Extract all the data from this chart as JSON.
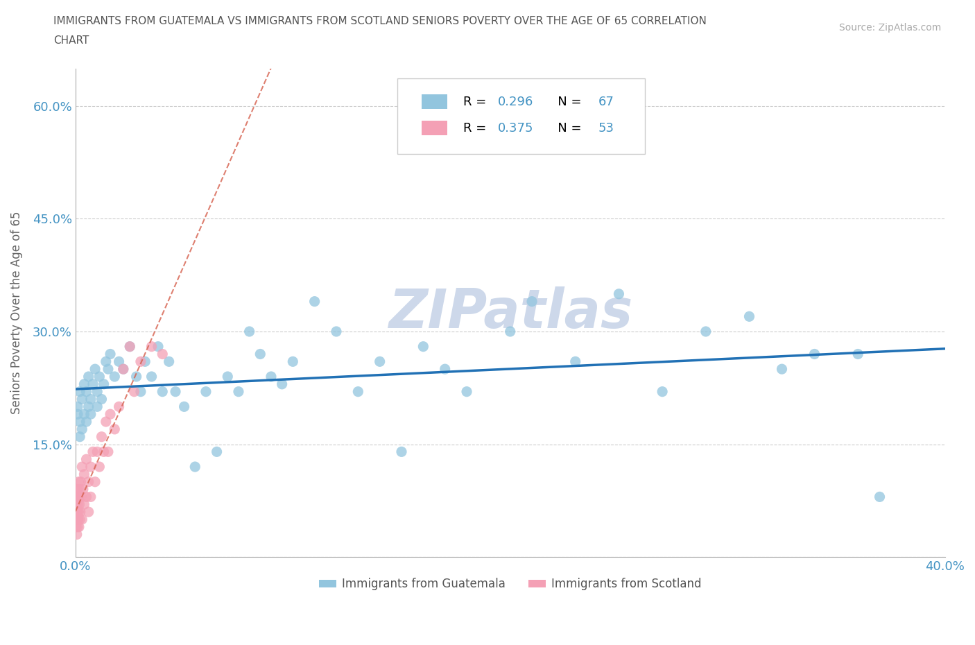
{
  "title_line1": "IMMIGRANTS FROM GUATEMALA VS IMMIGRANTS FROM SCOTLAND SENIORS POVERTY OVER THE AGE OF 65 CORRELATION",
  "title_line2": "CHART",
  "source": "Source: ZipAtlas.com",
  "ylabel": "Seniors Poverty Over the Age of 65",
  "xlim": [
    0.0,
    0.4
  ],
  "ylim": [
    0.0,
    0.65
  ],
  "R_guatemala": 0.296,
  "N_guatemala": 67,
  "R_scotland": 0.375,
  "N_scotland": 53,
  "color_guatemala": "#92c5de",
  "color_scotland": "#f4a0b5",
  "trendline_guatemala": "#2171b5",
  "trendline_scotland": "#d6604d",
  "watermark_color": "#cdd8ea",
  "background_color": "#ffffff",
  "grid_color": "#cccccc",
  "title_color": "#555555",
  "axis_color": "#aaaaaa",
  "tick_color": "#4393c3",
  "guatemala_x": [
    0.001,
    0.001,
    0.002,
    0.002,
    0.002,
    0.003,
    0.003,
    0.004,
    0.004,
    0.005,
    0.005,
    0.006,
    0.006,
    0.007,
    0.007,
    0.008,
    0.009,
    0.01,
    0.01,
    0.011,
    0.012,
    0.013,
    0.014,
    0.015,
    0.016,
    0.018,
    0.02,
    0.022,
    0.025,
    0.028,
    0.03,
    0.032,
    0.035,
    0.038,
    0.04,
    0.043,
    0.046,
    0.05,
    0.055,
    0.06,
    0.065,
    0.07,
    0.075,
    0.08,
    0.085,
    0.09,
    0.095,
    0.1,
    0.11,
    0.12,
    0.13,
    0.14,
    0.15,
    0.16,
    0.17,
    0.18,
    0.2,
    0.21,
    0.23,
    0.25,
    0.27,
    0.29,
    0.31,
    0.325,
    0.34,
    0.36,
    0.37
  ],
  "guatemala_y": [
    0.19,
    0.2,
    0.16,
    0.18,
    0.22,
    0.17,
    0.21,
    0.19,
    0.23,
    0.18,
    0.22,
    0.2,
    0.24,
    0.19,
    0.21,
    0.23,
    0.25,
    0.2,
    0.22,
    0.24,
    0.21,
    0.23,
    0.26,
    0.25,
    0.27,
    0.24,
    0.26,
    0.25,
    0.28,
    0.24,
    0.22,
    0.26,
    0.24,
    0.28,
    0.22,
    0.26,
    0.22,
    0.2,
    0.12,
    0.22,
    0.14,
    0.24,
    0.22,
    0.3,
    0.27,
    0.24,
    0.23,
    0.26,
    0.34,
    0.3,
    0.22,
    0.26,
    0.14,
    0.28,
    0.25,
    0.22,
    0.3,
    0.34,
    0.26,
    0.35,
    0.22,
    0.3,
    0.32,
    0.25,
    0.27,
    0.27,
    0.08
  ],
  "scotland_x": [
    0.0002,
    0.0003,
    0.0004,
    0.0005,
    0.0005,
    0.0006,
    0.0007,
    0.0007,
    0.0008,
    0.0009,
    0.001,
    0.001,
    0.001,
    0.0012,
    0.0013,
    0.0014,
    0.0015,
    0.0016,
    0.0017,
    0.0018,
    0.002,
    0.002,
    0.0022,
    0.0024,
    0.0026,
    0.003,
    0.003,
    0.0035,
    0.004,
    0.004,
    0.005,
    0.005,
    0.006,
    0.006,
    0.007,
    0.007,
    0.008,
    0.009,
    0.01,
    0.011,
    0.012,
    0.013,
    0.014,
    0.015,
    0.016,
    0.018,
    0.02,
    0.022,
    0.025,
    0.027,
    0.03,
    0.035,
    0.04
  ],
  "scotland_y": [
    0.07,
    0.04,
    0.06,
    0.05,
    0.08,
    0.03,
    0.06,
    0.09,
    0.05,
    0.07,
    0.04,
    0.06,
    0.09,
    0.05,
    0.08,
    0.06,
    0.1,
    0.04,
    0.08,
    0.07,
    0.05,
    0.09,
    0.06,
    0.1,
    0.08,
    0.05,
    0.12,
    0.09,
    0.07,
    0.11,
    0.08,
    0.13,
    0.1,
    0.06,
    0.12,
    0.08,
    0.14,
    0.1,
    0.14,
    0.12,
    0.16,
    0.14,
    0.18,
    0.14,
    0.19,
    0.17,
    0.2,
    0.25,
    0.28,
    0.22,
    0.26,
    0.28,
    0.27
  ]
}
